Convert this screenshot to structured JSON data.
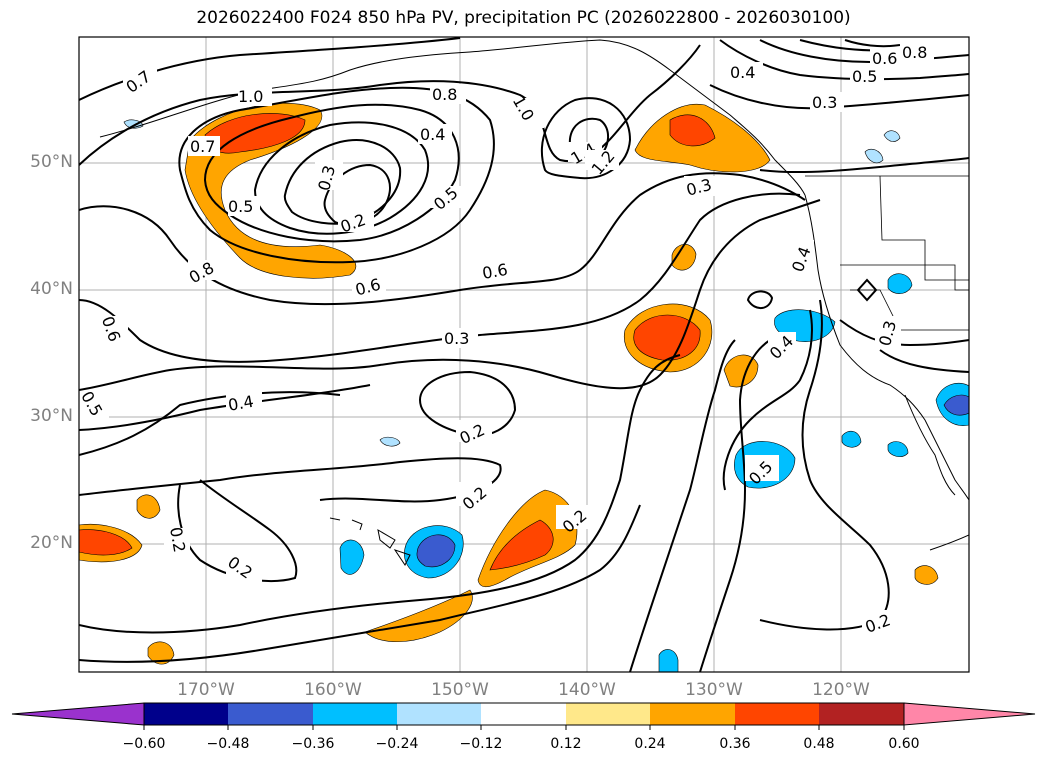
{
  "title": "2026022400 F024 850 hPa PV, precipitation PC (2026022800 - 2026030100)",
  "latitude_labels": [
    "50°N",
    "40°N",
    "30°N",
    "20°N"
  ],
  "longitude_labels": [
    "170°W",
    "160°W",
    "150°W",
    "140°W",
    "130°W",
    "120°W"
  ],
  "colorbar": {
    "ticks": [
      "−0.60",
      "−0.48",
      "−0.36",
      "−0.24",
      "−0.12",
      "0.12",
      "0.24",
      "0.36",
      "0.48",
      "0.60"
    ],
    "colors": [
      "#9a32cd",
      "#00008b",
      "#3a5bcf",
      "#00bfff",
      "#b0e2ff",
      "#ffffff",
      "#ffe88a",
      "#ffa500",
      "#ff4500",
      "#b22222",
      "#ff86a8"
    ]
  },
  "contour_labels": [
    "0.7",
    "1.0",
    "0.7",
    "0.8",
    "1.0",
    "0.4",
    "0.3",
    "0.5",
    "0.5",
    "0.2",
    "0.8",
    "0.6",
    "0.6",
    "1.4",
    "1.2",
    "0.3",
    "0.4",
    "0.6",
    "0.5",
    "0.8",
    "0.3",
    "0.6",
    "0.5",
    "0.3",
    "0.4",
    "0.2",
    "0.2",
    "0.2",
    "0.2",
    "0.2",
    "0.5",
    "0.4",
    "0.2",
    "0.3",
    "0.4"
  ]
}
